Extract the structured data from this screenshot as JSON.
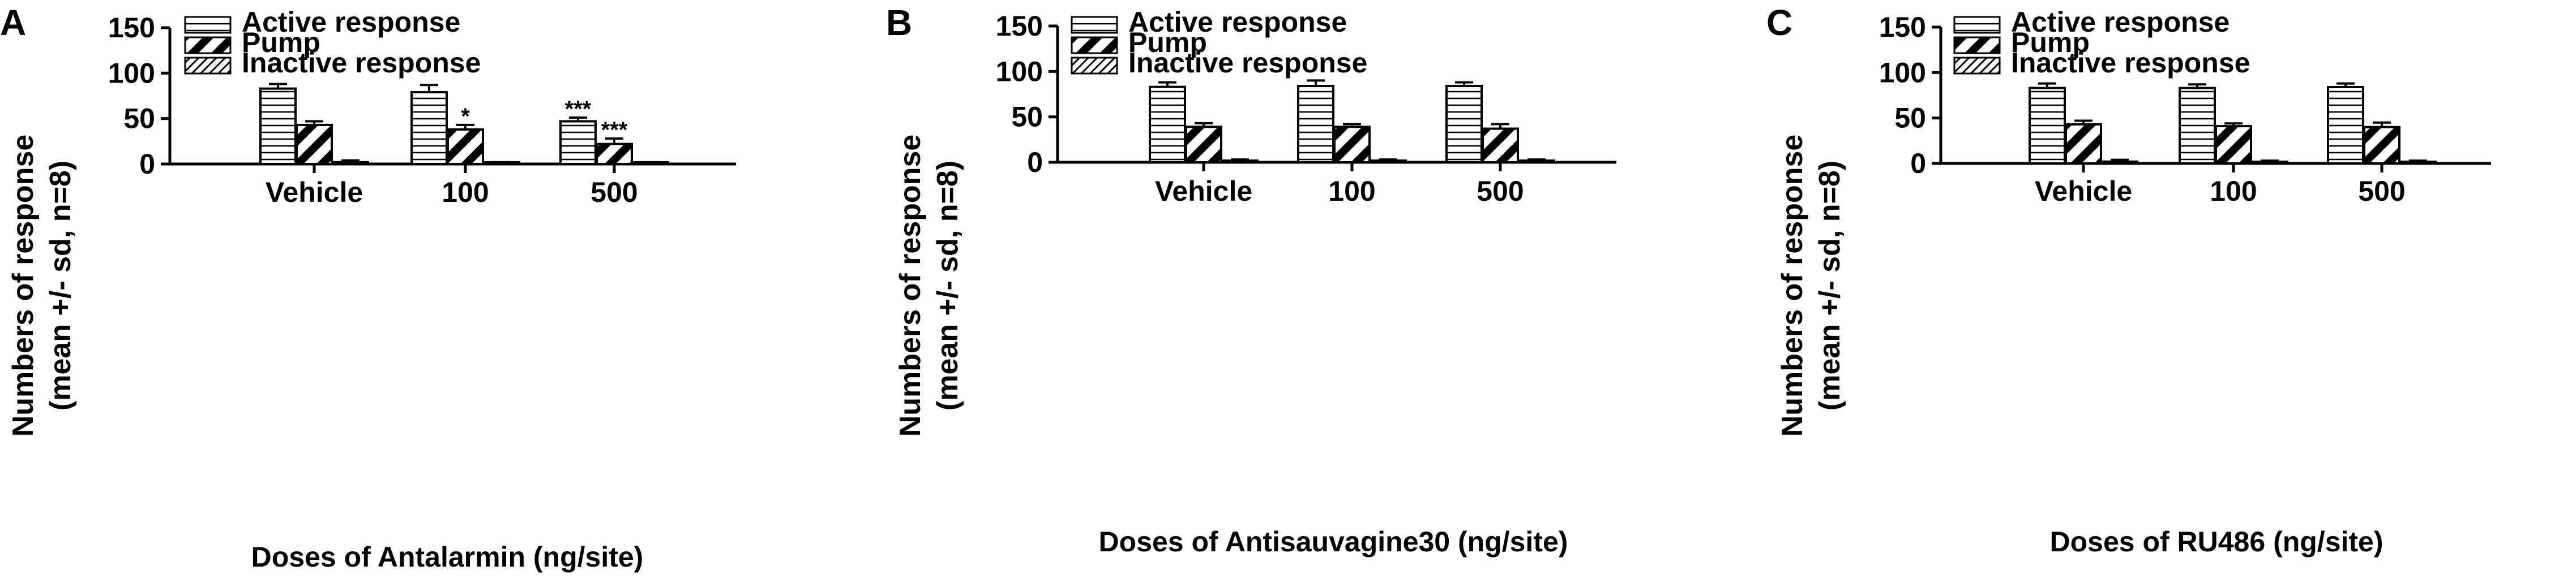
{
  "figure": {
    "panels": [
      {
        "letter": "A",
        "ylabel_line1": "Numbers of response",
        "ylabel_line2": "(mean +/- sd, n=8)",
        "xlabel": "Doses of Antalarmin (ng/site)"
      },
      {
        "letter": "B",
        "ylabel_line1": "Numbers of response",
        "ylabel_line2": "(mean +/- sd, n=8)",
        "xlabel": "Doses of Antisauvagine30 (ng/site)"
      },
      {
        "letter": "C",
        "ylabel_line1": "Numbers of response",
        "ylabel_line2": "(mean +/- sd, n=8)",
        "xlabel": "Doses of RU486 (ng/site)"
      }
    ]
  },
  "chart_data": [
    {
      "type": "bar",
      "panel": "A",
      "categories": [
        "Vehicle",
        "100",
        "500"
      ],
      "ylim": [
        0,
        150
      ],
      "yticks": [
        0,
        50,
        100,
        150
      ],
      "ylabel": "Numbers of response (mean +/- sd, n=8)",
      "xlabel": "Doses of Antalarmin (ng/site)",
      "legend_position": "top-left",
      "series": [
        {
          "name": "Active response",
          "values": [
            83,
            79,
            47
          ],
          "sd": [
            5,
            8,
            4
          ],
          "annotations": [
            "",
            "",
            "***"
          ],
          "pattern": "horizontal"
        },
        {
          "name": "Pump",
          "values": [
            43,
            38,
            22
          ],
          "sd": [
            4,
            5,
            6
          ],
          "annotations": [
            "",
            "*",
            "***"
          ],
          "pattern": "diagonal-wide"
        },
        {
          "name": "Inactive response",
          "values": [
            2,
            1,
            1
          ],
          "sd": [
            2,
            1,
            1
          ],
          "annotations": [
            "",
            "",
            ""
          ],
          "pattern": "diagonal-fine"
        }
      ]
    },
    {
      "type": "bar",
      "panel": "B",
      "categories": [
        "Vehicle",
        "100",
        "500"
      ],
      "ylim": [
        0,
        150
      ],
      "yticks": [
        0,
        50,
        100,
        150
      ],
      "ylabel": "Numbers of response (mean +/- sd, n=8)",
      "xlabel": "Doses of Antisauvagine30 (ng/site)",
      "legend_position": "top-left",
      "series": [
        {
          "name": "Active response",
          "values": [
            83,
            84,
            84
          ],
          "sd": [
            5,
            6,
            4
          ],
          "annotations": [
            "",
            "",
            ""
          ],
          "pattern": "horizontal"
        },
        {
          "name": "Pump",
          "values": [
            39,
            39,
            37
          ],
          "sd": [
            4,
            3,
            5
          ],
          "annotations": [
            "",
            "",
            ""
          ],
          "pattern": "diagonal-wide"
        },
        {
          "name": "Inactive response",
          "values": [
            1,
            1,
            1
          ],
          "sd": [
            2,
            2,
            2
          ],
          "annotations": [
            "",
            "",
            ""
          ],
          "pattern": "diagonal-fine"
        }
      ]
    },
    {
      "type": "bar",
      "panel": "C",
      "categories": [
        "Vehicle",
        "100",
        "500"
      ],
      "ylim": [
        0,
        150
      ],
      "yticks": [
        0,
        50,
        100,
        150
      ],
      "ylabel": "Numbers of response (mean +/- sd, n=8)",
      "xlabel": "Doses of RU486 (ng/site)",
      "legend_position": "top-left",
      "series": [
        {
          "name": "Active response",
          "values": [
            83,
            83,
            84
          ],
          "sd": [
            5,
            4,
            4
          ],
          "annotations": [
            "",
            "",
            ""
          ],
          "pattern": "horizontal"
        },
        {
          "name": "Pump",
          "values": [
            43,
            41,
            40
          ],
          "sd": [
            4,
            3,
            5
          ],
          "annotations": [
            "",
            "",
            ""
          ],
          "pattern": "diagonal-wide"
        },
        {
          "name": "Inactive response",
          "values": [
            2,
            1,
            1
          ],
          "sd": [
            2,
            2,
            2
          ],
          "annotations": [
            "",
            "",
            ""
          ],
          "pattern": "diagonal-fine"
        }
      ]
    }
  ]
}
